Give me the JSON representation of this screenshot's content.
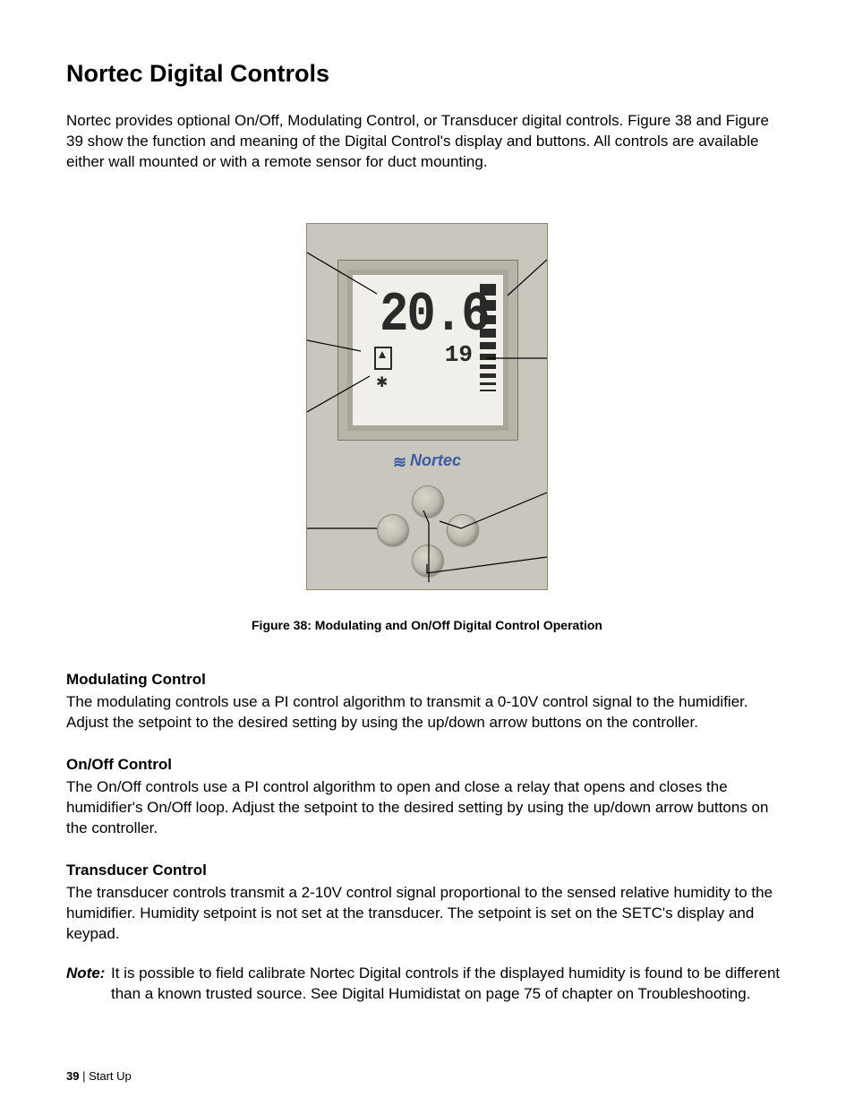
{
  "title": "Nortec Digital Controls",
  "intro": "Nortec provides optional On/Off, Modulating Control, or Transducer digital controls.  Figure 38 and Figure 39 show the function and meaning of the Digital Control's display and buttons.  All controls are available either wall mounted or with a remote sensor for duct mounting.",
  "figure": {
    "caption": "Figure 38: Modulating and On/Off Digital Control Operation",
    "display_value": "20.6",
    "setpoint_value": "19",
    "brand": "Nortec",
    "scale_segments": 10
  },
  "sections": [
    {
      "heading": "Modulating Control",
      "body": "The modulating controls use a PI control algorithm to transmit a 0-10V control signal to the humidifier.  Adjust the setpoint to the desired setting by using the up/down arrow buttons on the controller."
    },
    {
      "heading": "On/Off Control",
      "body": "The On/Off controls use a PI control algorithm to open and close a relay that opens and closes the humidifier's On/Off loop.  Adjust the setpoint to the desired setting by using the up/down arrow buttons on the controller."
    },
    {
      "heading": "Transducer Control",
      "body": "The transducer controls transmit a 2-10V control signal proportional to the sensed relative humidity to the humidifier.  Humidity setpoint is not set at the transducer.  The setpoint is set on the SETC's display and keypad."
    }
  ],
  "note": {
    "label": "Note:",
    "body": "It is possible to field calibrate Nortec Digital controls if the displayed humidity is found to be different than a known trusted source.  See Digital Humidistat on page 75 of chapter on Troubleshooting."
  },
  "footer": {
    "page": "39",
    "sep": " | ",
    "section": "Start Up"
  }
}
